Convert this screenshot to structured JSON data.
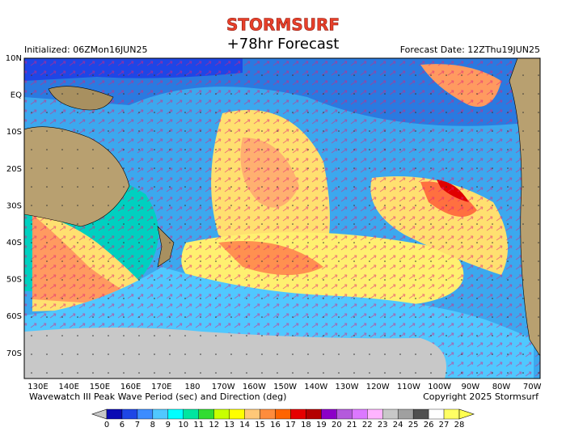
{
  "header": {
    "brand": "STORMSURF",
    "title": "+78hr Forecast",
    "initialized": "Initialized: 06ZMon16JUN25",
    "forecast_date": "Forecast Date: 12ZThu19JUN25"
  },
  "map": {
    "lat_labels": [
      "10N",
      "EQ",
      "10S",
      "20S",
      "30S",
      "40S",
      "50S",
      "60S",
      "70S"
    ],
    "lon_labels": [
      "130E",
      "140E",
      "150E",
      "160E",
      "170E",
      "180",
      "170W",
      "160W",
      "150W",
      "140W",
      "130W",
      "120W",
      "110W",
      "100W",
      "90W",
      "80W",
      "70W"
    ]
  },
  "footer": {
    "caption": "Wavewatch III Peak Wave Period (sec) and Direction (deg)",
    "copyright": "Copyright 2025 Stormsurf"
  },
  "colorbar": {
    "labels": [
      0,
      6,
      7,
      8,
      9,
      10,
      11,
      12,
      13,
      14,
      15,
      16,
      17,
      18,
      19,
      20,
      21,
      22,
      23,
      24,
      25,
      26,
      27,
      28
    ],
    "colors": [
      "#0a0ab4",
      "#1e46e6",
      "#3c8cff",
      "#50c8ff",
      "#00ffff",
      "#00e6a0",
      "#32dc32",
      "#c8ff00",
      "#ffff00",
      "#ffc878",
      "#ff8c3c",
      "#ff6400",
      "#e60000",
      "#b40000",
      "#8c00c8",
      "#b45adc",
      "#dc78ff",
      "#ffb4ff",
      "#c8c8c8",
      "#a0a0a0",
      "#505050",
      "#ffffff",
      "#ffff64"
    ],
    "under_color": "#c8c8c8",
    "over_color": "#ffff50"
  }
}
